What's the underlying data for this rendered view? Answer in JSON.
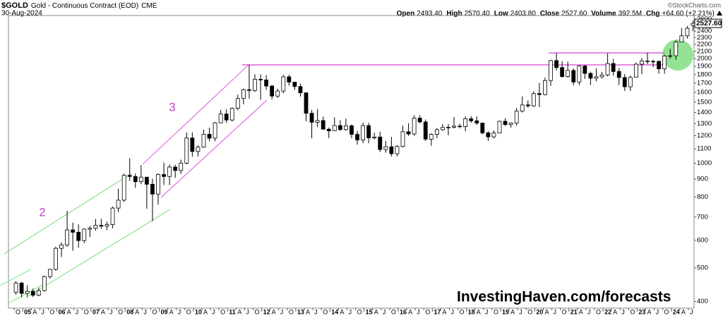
{
  "chart_data": {
    "type": "candlestick",
    "symbol": "$GOLD",
    "name": "Gold - Continuous Contract (EOD)",
    "exchange": "CME",
    "date": "30-Aug-2024",
    "source": "©StockCharts.com",
    "header_items": [
      {
        "label": "Open",
        "value": "2493.40"
      },
      {
        "label": "High",
        "value": "2570.40"
      },
      {
        "label": "Low",
        "value": "2403.80"
      },
      {
        "label": "Close",
        "value": "2527.60"
      },
      {
        "label": "Volume",
        "value": "392.5M"
      },
      {
        "label": "Chg",
        "value": "+64.60 (+2.21%)"
      }
    ],
    "last_price": 2527.6,
    "last_price_label": "2527.60",
    "annotations": [
      "2",
      "3"
    ],
    "watermark": "InvestingHaven.com/forecasts",
    "log_scale": true,
    "grid": false,
    "up_color": "#ffffff",
    "down_color": "#000000",
    "x": [
      "2004-10",
      "2004-12",
      "2005-02",
      "2005-04",
      "2005-06",
      "2005-08",
      "2005-10",
      "2005-12",
      "2006-02",
      "2006-04",
      "2006-06",
      "2006-08",
      "2006-10",
      "2006-12",
      "2007-02",
      "2007-04",
      "2007-06",
      "2007-08",
      "2007-10",
      "2007-12",
      "2008-02",
      "2008-04",
      "2008-06",
      "2008-08",
      "2008-10",
      "2008-12",
      "2009-02",
      "2009-04",
      "2009-06",
      "2009-08",
      "2009-10",
      "2009-12",
      "2010-02",
      "2010-04",
      "2010-06",
      "2010-08",
      "2010-10",
      "2010-12",
      "2011-02",
      "2011-04",
      "2011-06",
      "2011-08",
      "2011-10",
      "2011-12",
      "2012-02",
      "2012-04",
      "2012-06",
      "2012-08",
      "2012-10",
      "2012-12",
      "2013-02",
      "2013-04",
      "2013-06",
      "2013-08",
      "2013-10",
      "2013-12",
      "2014-02",
      "2014-04",
      "2014-06",
      "2014-08",
      "2014-10",
      "2014-12",
      "2015-02",
      "2015-04",
      "2015-06",
      "2015-08",
      "2015-10",
      "2015-12",
      "2016-02",
      "2016-04",
      "2016-06",
      "2016-08",
      "2016-10",
      "2016-12",
      "2017-02",
      "2017-04",
      "2017-06",
      "2017-08",
      "2017-10",
      "2017-12",
      "2018-02",
      "2018-04",
      "2018-06",
      "2018-08",
      "2018-10",
      "2018-12",
      "2019-02",
      "2019-04",
      "2019-06",
      "2019-08",
      "2019-10",
      "2019-12",
      "2020-02",
      "2020-04",
      "2020-06",
      "2020-08",
      "2020-10",
      "2020-12",
      "2021-02",
      "2021-04",
      "2021-06",
      "2021-08",
      "2021-10",
      "2021-12",
      "2022-02",
      "2022-04",
      "2022-06",
      "2022-08",
      "2022-10",
      "2022-12",
      "2023-02",
      "2023-04",
      "2023-06",
      "2023-08",
      "2023-10",
      "2023-12",
      "2024-02",
      "2024-04",
      "2024-06",
      "2024-08"
    ],
    "open": [
      425,
      452,
      422,
      428,
      417,
      430,
      472,
      495,
      569,
      582,
      643,
      633,
      599,
      646,
      650,
      663,
      659,
      666,
      743,
      783,
      923,
      916,
      885,
      912,
      870,
      815,
      928,
      916,
      975,
      953,
      1001,
      1182,
      1081,
      1113,
      1212,
      1181,
      1307,
      1386,
      1332,
      1439,
      1536,
      1628,
      1620,
      1745,
      1737,
      1668,
      1561,
      1614,
      1773,
      1712,
      1663,
      1595,
      1393,
      1312,
      1327,
      1253,
      1240,
      1284,
      1250,
      1282,
      1211,
      1167,
      1283,
      1183,
      1190,
      1095,
      1115,
      1065,
      1118,
      1232,
      1214,
      1349,
      1315,
      1173,
      1211,
      1249,
      1268,
      1269,
      1279,
      1275,
      1343,
      1325,
      1305,
      1223,
      1191,
      1222,
      1321,
      1292,
      1305,
      1413,
      1472,
      1463,
      1587,
      1577,
      1730,
      1975,
      1886,
      1776,
      1850,
      1713,
      1905,
      1814,
      1757,
      1774,
      1795,
      1937,
      1837,
      1765,
      1660,
      1768,
      1928,
      1969,
      1962,
      1965,
      1870,
      2036,
      2039,
      2233,
      2327,
      2493.4
    ],
    "high": [
      458,
      456,
      446,
      436,
      438,
      475,
      497,
      575,
      592,
      730,
      675,
      667,
      650,
      660,
      691,
      692,
      679,
      750,
      845,
      934,
      1033,
      934,
      988,
      913,
      903,
      935,
      1005,
      992,
      990,
      1024,
      1226,
      1227,
      1126,
      1249,
      1265,
      1315,
      1424,
      1431,
      1448,
      1577,
      1641,
      1921,
      1803,
      1804,
      1792,
      1681,
      1640,
      1796,
      1798,
      1696,
      1696,
      1600,
      1424,
      1433,
      1362,
      1267,
      1355,
      1331,
      1345,
      1293,
      1239,
      1307,
      1307,
      1224,
      1232,
      1159,
      1191,
      1126,
      1283,
      1304,
      1375,
      1375,
      1337,
      1220,
      1264,
      1296,
      1296,
      1358,
      1298,
      1366,
      1367,
      1365,
      1309,
      1236,
      1243,
      1326,
      1347,
      1310,
      1442,
      1557,
      1516,
      1611,
      1703,
      1765,
      1985,
      2075,
      1966,
      1959,
      1875,
      1916,
      1917,
      1834,
      1877,
      1832,
      2070,
      1998,
      1879,
      1807,
      1786,
      1949,
      2009,
      2081,
      1987,
      1973,
      2052,
      2135,
      2255,
      2450,
      2483,
      2570.4
    ],
    "low": [
      418,
      411,
      411,
      412,
      414,
      427,
      465,
      490,
      537,
      575,
      560,
      571,
      589,
      613,
      640,
      648,
      642,
      650,
      723,
      773,
      890,
      850,
      870,
      740,
      681,
      760,
      866,
      865,
      908,
      931,
      993,
      1044,
      1045,
      1108,
      1157,
      1157,
      1306,
      1308,
      1319,
      1420,
      1478,
      1535,
      1604,
      1523,
      1627,
      1527,
      1540,
      1590,
      1672,
      1626,
      1555,
      1321,
      1180,
      1271,
      1251,
      1181,
      1240,
      1240,
      1240,
      1180,
      1131,
      1142,
      1142,
      1170,
      1077,
      1072,
      1046,
      1046,
      1110,
      1200,
      1200,
      1302,
      1160,
      1123,
      1180,
      1240,
      1204,
      1260,
      1260,
      1236,
      1307,
      1289,
      1211,
      1160,
      1180,
      1221,
      1281,
      1266,
      1282,
      1400,
      1445,
      1453,
      1451,
      1568,
      1671,
      1848,
      1764,
      1763,
      1676,
      1677,
      1750,
      1680,
      1721,
      1753,
      1780,
      1787,
      1681,
      1615,
      1616,
      1765,
      1804,
      1930,
      1893,
      1810,
      1810,
      2001,
      1985,
      2228,
      2286,
      2403.8
    ],
    "close": [
      452,
      422,
      428,
      417,
      430,
      472,
      495,
      569,
      582,
      643,
      633,
      599,
      646,
      650,
      663,
      659,
      666,
      743,
      783,
      923,
      916,
      885,
      912,
      870,
      815,
      928,
      916,
      975,
      953,
      1001,
      1182,
      1081,
      1113,
      1212,
      1181,
      1307,
      1386,
      1332,
      1439,
      1536,
      1628,
      1620,
      1745,
      1737,
      1668,
      1561,
      1614,
      1773,
      1712,
      1663,
      1595,
      1393,
      1312,
      1327,
      1253,
      1240,
      1284,
      1250,
      1282,
      1211,
      1167,
      1283,
      1183,
      1190,
      1095,
      1115,
      1065,
      1118,
      1232,
      1214,
      1349,
      1315,
      1173,
      1211,
      1249,
      1268,
      1269,
      1279,
      1275,
      1343,
      1325,
      1305,
      1223,
      1191,
      1222,
      1321,
      1292,
      1305,
      1413,
      1472,
      1463,
      1587,
      1577,
      1730,
      1975,
      1886,
      1776,
      1850,
      1713,
      1905,
      1814,
      1757,
      1774,
      1795,
      1937,
      1837,
      1765,
      1660,
      1768,
      1928,
      1969,
      1962,
      1965,
      1870,
      2036,
      2039,
      2233,
      2327,
      2447,
      2527.6
    ],
    "xlim": [
      "2004-08",
      "2024-09"
    ],
    "ylim": [
      390,
      2650
    ],
    "yticks": [
      400,
      500,
      600,
      700,
      800,
      900,
      1000,
      1100,
      1200,
      1300,
      1400,
      1500,
      1600,
      1700,
      1800,
      1900,
      2000,
      2100,
      2200,
      2300,
      2400,
      2600
    ],
    "xticks": [
      {
        "value": "2004-10",
        "label": "O"
      },
      {
        "value": "2005-01",
        "label": "05"
      },
      {
        "value": "2005-04",
        "label": "A"
      },
      {
        "value": "2005-07",
        "label": "J"
      },
      {
        "value": "2005-10",
        "label": "O"
      },
      {
        "value": "2006-01",
        "label": "06"
      },
      {
        "value": "2006-04",
        "label": "A"
      },
      {
        "value": "2006-07",
        "label": "J"
      },
      {
        "value": "2006-10",
        "label": "O"
      },
      {
        "value": "2007-01",
        "label": "07"
      },
      {
        "value": "2007-04",
        "label": "A"
      },
      {
        "value": "2007-07",
        "label": "J"
      },
      {
        "value": "2007-10",
        "label": "O"
      },
      {
        "value": "2008-01",
        "label": "08"
      },
      {
        "value": "2008-04",
        "label": "A"
      },
      {
        "value": "2008-07",
        "label": "J"
      },
      {
        "value": "2008-10",
        "label": "O"
      },
      {
        "value": "2009-01",
        "label": "09"
      },
      {
        "value": "2009-04",
        "label": "A"
      },
      {
        "value": "2009-07",
        "label": "J"
      },
      {
        "value": "2009-10",
        "label": "O"
      },
      {
        "value": "2010-01",
        "label": "10"
      },
      {
        "value": "2010-04",
        "label": "A"
      },
      {
        "value": "2010-07",
        "label": "J"
      },
      {
        "value": "2010-10",
        "label": "O"
      },
      {
        "value": "2011-01",
        "label": "11"
      },
      {
        "value": "2011-04",
        "label": "A"
      },
      {
        "value": "2011-07",
        "label": "J"
      },
      {
        "value": "2011-10",
        "label": "O"
      },
      {
        "value": "2012-01",
        "label": "12"
      },
      {
        "value": "2012-04",
        "label": "A"
      },
      {
        "value": "2012-07",
        "label": "J"
      },
      {
        "value": "2012-10",
        "label": "O"
      },
      {
        "value": "2013-01",
        "label": "13"
      },
      {
        "value": "2013-04",
        "label": "A"
      },
      {
        "value": "2013-07",
        "label": "J"
      },
      {
        "value": "2013-10",
        "label": "O"
      },
      {
        "value": "2014-01",
        "label": "14"
      },
      {
        "value": "2014-04",
        "label": "A"
      },
      {
        "value": "2014-07",
        "label": "J"
      },
      {
        "value": "2014-10",
        "label": "O"
      },
      {
        "value": "2015-01",
        "label": "15"
      },
      {
        "value": "2015-04",
        "label": "A"
      },
      {
        "value": "2015-07",
        "label": "J"
      },
      {
        "value": "2015-10",
        "label": "O"
      },
      {
        "value": "2016-01",
        "label": "16"
      },
      {
        "value": "2016-04",
        "label": "A"
      },
      {
        "value": "2016-07",
        "label": "J"
      },
      {
        "value": "2016-10",
        "label": "O"
      },
      {
        "value": "2017-01",
        "label": "17"
      },
      {
        "value": "2017-04",
        "label": "A"
      },
      {
        "value": "2017-07",
        "label": "J"
      },
      {
        "value": "2017-10",
        "label": "O"
      },
      {
        "value": "2018-01",
        "label": "18"
      },
      {
        "value": "2018-04",
        "label": "A"
      },
      {
        "value": "2018-07",
        "label": "J"
      },
      {
        "value": "2018-10",
        "label": "O"
      },
      {
        "value": "2019-01",
        "label": "19"
      },
      {
        "value": "2019-04",
        "label": "A"
      },
      {
        "value": "2019-07",
        "label": "J"
      },
      {
        "value": "2019-10",
        "label": "O"
      },
      {
        "value": "2020-01",
        "label": "20"
      },
      {
        "value": "2020-04",
        "label": "A"
      },
      {
        "value": "2020-07",
        "label": "J"
      },
      {
        "value": "2020-10",
        "label": "O"
      },
      {
        "value": "2021-01",
        "label": "21"
      },
      {
        "value": "2021-04",
        "label": "A"
      },
      {
        "value": "2021-07",
        "label": "J"
      },
      {
        "value": "2021-10",
        "label": "O"
      },
      {
        "value": "2022-01",
        "label": "22"
      },
      {
        "value": "2022-04",
        "label": "A"
      },
      {
        "value": "2022-07",
        "label": "J"
      },
      {
        "value": "2022-10",
        "label": "O"
      },
      {
        "value": "2023-01",
        "label": "23"
      },
      {
        "value": "2023-04",
        "label": "A"
      },
      {
        "value": "2023-07",
        "label": "J"
      },
      {
        "value": "2023-10",
        "label": "O"
      },
      {
        "value": "2024-01",
        "label": "24"
      },
      {
        "value": "2024-04",
        "label": "A"
      },
      {
        "value": "2024-07",
        "label": "J"
      }
    ]
  }
}
